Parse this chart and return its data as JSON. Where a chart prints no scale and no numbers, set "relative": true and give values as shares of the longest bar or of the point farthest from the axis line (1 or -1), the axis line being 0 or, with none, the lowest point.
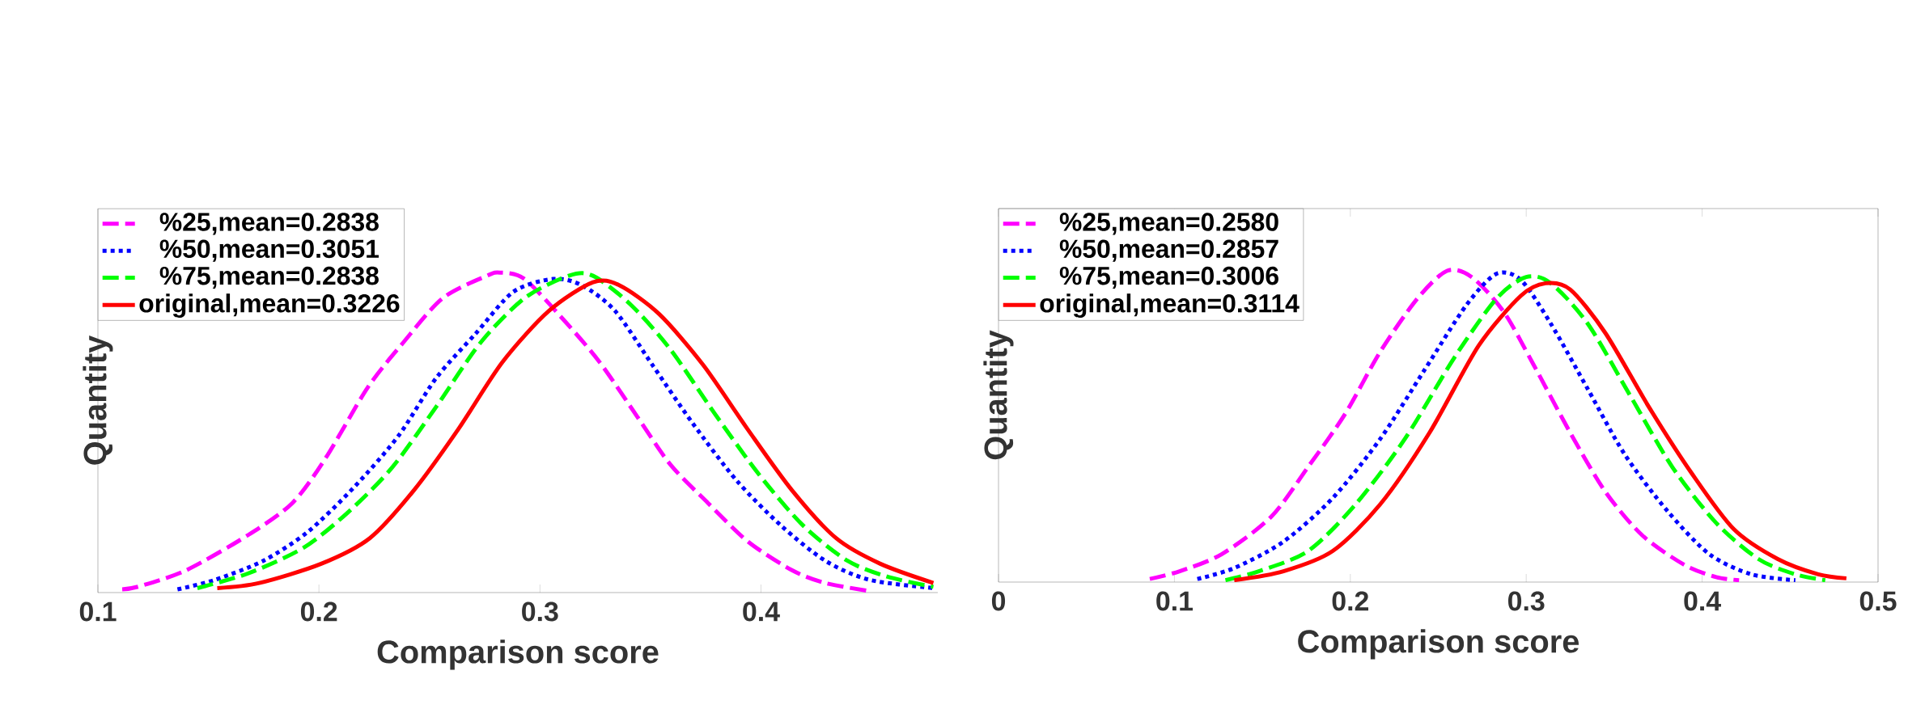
{
  "chart_data": [
    {
      "type": "line",
      "relative": true,
      "xlabel": "Comparison score",
      "ylabel": "Quantity",
      "xlim": [
        0.1,
        0.48
      ],
      "xticks": [
        0.1,
        0.2,
        0.3,
        0.4
      ],
      "legend": "top left",
      "grid": false,
      "marker": "none",
      "series": [
        {
          "name": "%25,mean=0.2838",
          "color": "#ff00ff",
          "line_style": "dashed",
          "x": [
            0.111,
            0.119,
            0.14,
            0.168,
            0.188,
            0.203,
            0.222,
            0.238,
            0.256,
            0.276,
            0.282,
            0.293,
            0.311,
            0.327,
            0.344,
            0.359,
            0.376,
            0.394,
            0.414,
            0.429,
            0.449
          ],
          "values": [
            0.01,
            0.02,
            0.07,
            0.18,
            0.28,
            0.42,
            0.64,
            0.78,
            0.92,
            0.99,
            1.0,
            0.98,
            0.85,
            0.72,
            0.55,
            0.4,
            0.28,
            0.16,
            0.07,
            0.03,
            0.005
          ]
        },
        {
          "name": "%50,mean=0.3051",
          "color": "#0000ff",
          "line_style": "dotted",
          "x": [
            0.136,
            0.153,
            0.175,
            0.195,
            0.216,
            0.236,
            0.253,
            0.271,
            0.288,
            0.306,
            0.319,
            0.334,
            0.351,
            0.369,
            0.389,
            0.409,
            0.429,
            0.449,
            0.478
          ],
          "values": [
            0.01,
            0.04,
            0.1,
            0.19,
            0.33,
            0.49,
            0.67,
            0.81,
            0.94,
            0.98,
            0.96,
            0.88,
            0.71,
            0.53,
            0.35,
            0.21,
            0.1,
            0.04,
            0.014
          ]
        },
        {
          "name": "%75,mean=0.2838",
          "color": "#00ff00",
          "line_style": "dashed",
          "x": [
            0.145,
            0.168,
            0.193,
            0.213,
            0.233,
            0.253,
            0.273,
            0.293,
            0.313,
            0.324,
            0.341,
            0.359,
            0.379,
            0.399,
            0.419,
            0.439,
            0.457,
            0.478
          ],
          "values": [
            0.014,
            0.06,
            0.14,
            0.25,
            0.39,
            0.58,
            0.78,
            0.92,
            0.99,
            0.99,
            0.9,
            0.76,
            0.56,
            0.37,
            0.21,
            0.1,
            0.05,
            0.018
          ]
        },
        {
          "name": "original,mean=0.3226",
          "color": "#ff0000",
          "line_style": "solid",
          "x": [
            0.154,
            0.173,
            0.201,
            0.223,
            0.243,
            0.263,
            0.283,
            0.304,
            0.324,
            0.336,
            0.354,
            0.374,
            0.394,
            0.414,
            0.434,
            0.454,
            0.478
          ],
          "values": [
            0.014,
            0.03,
            0.09,
            0.17,
            0.32,
            0.51,
            0.72,
            0.88,
            0.97,
            0.96,
            0.87,
            0.71,
            0.51,
            0.32,
            0.17,
            0.09,
            0.03
          ]
        }
      ]
    },
    {
      "type": "line",
      "relative": true,
      "xlabel": "Comparison score",
      "ylabel": "Quantity",
      "xlim": [
        0,
        0.5
      ],
      "xticks": [
        0,
        0.1,
        0.2,
        0.3,
        0.4,
        0.5
      ],
      "legend": "top left",
      "grid": false,
      "marker": "none",
      "series": [
        {
          "name": "%25,mean=0.2580",
          "color": "#ff00ff",
          "line_style": "dashed",
          "x": [
            0.086,
            0.103,
            0.127,
            0.155,
            0.176,
            0.197,
            0.217,
            0.238,
            0.255,
            0.269,
            0.287,
            0.304,
            0.325,
            0.345,
            0.366,
            0.39,
            0.408,
            0.421
          ],
          "values": [
            0.01,
            0.035,
            0.09,
            0.21,
            0.37,
            0.54,
            0.74,
            0.91,
            1.0,
            0.98,
            0.87,
            0.7,
            0.48,
            0.29,
            0.15,
            0.055,
            0.016,
            0.006
          ]
        },
        {
          "name": "%50,mean=0.2857",
          "color": "#0000ff",
          "line_style": "dotted",
          "x": [
            0.113,
            0.134,
            0.162,
            0.19,
            0.217,
            0.242,
            0.266,
            0.283,
            0.297,
            0.314,
            0.335,
            0.356,
            0.38,
            0.404,
            0.428,
            0.453
          ],
          "values": [
            0.01,
            0.045,
            0.13,
            0.27,
            0.46,
            0.68,
            0.89,
            0.99,
            0.97,
            0.83,
            0.62,
            0.41,
            0.23,
            0.09,
            0.025,
            0.006
          ]
        },
        {
          "name": "%75,mean=0.3006",
          "color": "#00ff00",
          "line_style": "dashed",
          "x": [
            0.129,
            0.148,
            0.176,
            0.203,
            0.231,
            0.259,
            0.283,
            0.3,
            0.314,
            0.335,
            0.359,
            0.383,
            0.408,
            0.432,
            0.453,
            0.47
          ],
          "values": [
            0.006,
            0.035,
            0.1,
            0.25,
            0.46,
            0.72,
            0.91,
            0.98,
            0.96,
            0.83,
            0.6,
            0.37,
            0.19,
            0.074,
            0.025,
            0.006
          ]
        },
        {
          "name": "original,mean=0.3114",
          "color": "#ff0000",
          "line_style": "solid",
          "x": [
            0.134,
            0.162,
            0.19,
            0.217,
            0.245,
            0.273,
            0.297,
            0.311,
            0.325,
            0.345,
            0.37,
            0.394,
            0.418,
            0.443,
            0.466,
            0.482
          ],
          "values": [
            0.006,
            0.035,
            0.1,
            0.25,
            0.48,
            0.76,
            0.92,
            0.96,
            0.94,
            0.8,
            0.56,
            0.35,
            0.17,
            0.074,
            0.025,
            0.012
          ]
        }
      ]
    }
  ]
}
